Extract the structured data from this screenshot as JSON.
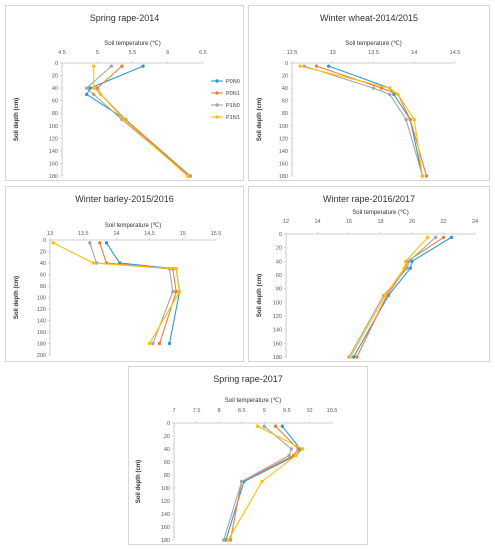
{
  "legend": {
    "items": [
      {
        "name": "P0N0",
        "color": "#2e9ad0"
      },
      {
        "name": "P0N1",
        "color": "#ee7d3a"
      },
      {
        "name": "P1N0",
        "color": "#a5a5a5"
      },
      {
        "name": "P1N1",
        "color": "#ffc000"
      }
    ]
  },
  "chart_data": [
    {
      "type": "line",
      "title": "Spring rape-2014",
      "xlabel": "Soil temperature (℃)",
      "ylabel": "Soil depth (cm)",
      "xlim": [
        4.5,
        6.5
      ],
      "xticks": [
        "4.5",
        "5",
        "5.5",
        "6",
        "6.5"
      ],
      "ylim": [
        0,
        180
      ],
      "yticks": [
        "0",
        "20",
        "40",
        "60",
        "80",
        "100",
        "120",
        "140",
        "160",
        "180"
      ],
      "legend_position": "right",
      "depths": [
        5,
        40,
        50,
        90,
        180
      ],
      "series": [
        {
          "name": "P0N0",
          "color": "#2e9ad0",
          "values": [
            5.65,
            4.9,
            4.85,
            5.4,
            6.3
          ]
        },
        {
          "name": "P0N1",
          "color": "#ee7d3a",
          "values": [
            5.35,
            5.0,
            5.05,
            5.4,
            6.32
          ]
        },
        {
          "name": "P1N0",
          "color": "#a5a5a5",
          "values": [
            5.2,
            4.85,
            4.95,
            5.35,
            6.3
          ]
        },
        {
          "name": "P1N1",
          "color": "#ffc000",
          "values": [
            4.95,
            4.95,
            5.05,
            5.38,
            6.28
          ]
        }
      ]
    },
    {
      "type": "line",
      "title": "Winter wheat-2014/2015",
      "xlabel": "Soil temperature (℃)",
      "ylabel": "Soil depth (cm)",
      "xlim": [
        12.5,
        14.5
      ],
      "xticks": [
        "12.5",
        "13",
        "13.5",
        "14",
        "14.5"
      ],
      "ylim": [
        0,
        180
      ],
      "yticks": [
        "0",
        "20",
        "40",
        "60",
        "80",
        "100",
        "120",
        "140",
        "160",
        "180"
      ],
      "depths": [
        5,
        40,
        50,
        90,
        180
      ],
      "series": [
        {
          "name": "P0N0",
          "color": "#2e9ad0",
          "values": [
            12.95,
            13.7,
            13.75,
            13.95,
            14.1
          ]
        },
        {
          "name": "P0N1",
          "color": "#ee7d3a",
          "values": [
            12.8,
            13.6,
            13.8,
            13.95,
            14.15
          ]
        },
        {
          "name": "P1N0",
          "color": "#a5a5a5",
          "values": [
            12.65,
            13.5,
            13.7,
            13.9,
            14.1
          ]
        },
        {
          "name": "P1N1",
          "color": "#ffc000",
          "values": [
            12.6,
            13.7,
            13.8,
            14.0,
            14.1
          ]
        }
      ]
    },
    {
      "type": "line",
      "title": "Winter barley-2015/2016",
      "xlabel": "Soil temperature (℃)",
      "ylabel": "Soil depth (cm)",
      "xlim": [
        13,
        15.5
      ],
      "xticks": [
        "13",
        "13.5",
        "14",
        "14.5",
        "15",
        "15.5"
      ],
      "ylim": [
        0,
        200
      ],
      "yticks": [
        "0",
        "20",
        "40",
        "60",
        "80",
        "100",
        "120",
        "140",
        "160",
        "180",
        "200"
      ],
      "depths": [
        5,
        40,
        50,
        90,
        180
      ],
      "series": [
        {
          "name": "P0N0",
          "color": "#2e9ad0",
          "values": [
            13.85,
            14.05,
            14.9,
            14.95,
            14.8
          ]
        },
        {
          "name": "P0N1",
          "color": "#ee7d3a",
          "values": [
            13.75,
            13.85,
            14.85,
            14.9,
            14.65
          ]
        },
        {
          "name": "P1N0",
          "color": "#a5a5a5",
          "values": [
            13.6,
            13.7,
            14.8,
            14.85,
            14.55
          ]
        },
        {
          "name": "P1N1",
          "color": "#ffc000",
          "values": [
            13.05,
            13.65,
            14.9,
            14.95,
            14.5
          ]
        }
      ]
    },
    {
      "type": "line",
      "title": "Winter rape-2016/2017",
      "xlabel": "Soil temperature (℃)",
      "ylabel": "Soil depth (cm)",
      "xlim": [
        12,
        24
      ],
      "xticks": [
        "12",
        "14",
        "16",
        "18",
        "20",
        "22",
        "24"
      ],
      "ylim": [
        0,
        180
      ],
      "yticks": [
        "0",
        "20",
        "40",
        "60",
        "80",
        "100",
        "120",
        "140",
        "160",
        "180"
      ],
      "depths": [
        5,
        40,
        50,
        90,
        180
      ],
      "series": [
        {
          "name": "P0N0",
          "color": "#2e9ad0",
          "values": [
            22.5,
            20.0,
            19.9,
            18.5,
            16.3
          ]
        },
        {
          "name": "P0N1",
          "color": "#ee7d3a",
          "values": [
            22.0,
            19.7,
            19.6,
            18.4,
            16.5
          ]
        },
        {
          "name": "P1N0",
          "color": "#a5a5a5",
          "values": [
            21.5,
            19.8,
            19.7,
            18.2,
            16.0
          ]
        },
        {
          "name": "P1N1",
          "color": "#ffc000",
          "values": [
            21.0,
            19.6,
            19.5,
            18.3,
            16.1
          ]
        }
      ]
    },
    {
      "type": "line",
      "title": "Spring rape-2017",
      "xlabel": "Soil temperature (℃)",
      "ylabel": "Soil depth (cm)",
      "xlim": [
        7,
        10.5
      ],
      "xticks": [
        "7",
        "7.5",
        "8",
        "8.5",
        "9",
        "9.5",
        "10",
        "10.5"
      ],
      "ylim": [
        0,
        180
      ],
      "yticks": [
        "0",
        "20",
        "40",
        "60",
        "80",
        "100",
        "120",
        "140",
        "160",
        "180"
      ],
      "depths": [
        5,
        40,
        50,
        90,
        180
      ],
      "series": [
        {
          "name": "P0N0",
          "color": "#2e9ad0",
          "values": [
            9.4,
            9.8,
            9.7,
            8.55,
            8.15
          ]
        },
        {
          "name": "P0N1",
          "color": "#ee7d3a",
          "values": [
            9.25,
            9.75,
            9.65,
            8.5,
            8.25
          ]
        },
        {
          "name": "P1N0",
          "color": "#a5a5a5",
          "values": [
            9.0,
            9.6,
            9.55,
            8.5,
            8.1
          ]
        },
        {
          "name": "P1N1",
          "color": "#ffc000",
          "values": [
            8.85,
            9.85,
            9.7,
            8.95,
            8.2
          ]
        }
      ]
    }
  ]
}
